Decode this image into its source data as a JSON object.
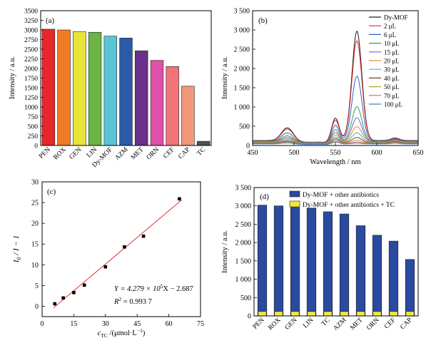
{
  "chart_data": [
    {
      "panel": "(a)",
      "type": "bar",
      "ylabel": "Intensity / a.u.",
      "ylim": [
        0,
        3500
      ],
      "yticks": [
        0,
        250,
        500,
        750,
        1000,
        1250,
        1500,
        1750,
        2000,
        2250,
        2500,
        2750,
        3000,
        3250,
        3500
      ],
      "categories": [
        "PEN",
        "ROX",
        "GEN",
        "LIN",
        "Dy-MOF",
        "AZM",
        "MET",
        "ORN",
        "CEF",
        "CAP",
        "TC"
      ],
      "values": [
        3020,
        3000,
        2960,
        2940,
        2840,
        2790,
        2460,
        2210,
        2050,
        1540,
        110
      ],
      "colors": [
        "#e8262b",
        "#f07b24",
        "#e8e43a",
        "#6ab344",
        "#58c4d6",
        "#2a5aa8",
        "#6a2f8a",
        "#e050a6",
        "#f07478",
        "#f0987a",
        "#505050"
      ]
    },
    {
      "panel": "(b)",
      "type": "line",
      "xlabel": "Wavelength / nm",
      "ylabel": "Intensity / a.u.",
      "xlim": [
        450,
        650
      ],
      "xticks": [
        450,
        500,
        550,
        600,
        650
      ],
      "ylim": [
        0,
        3500
      ],
      "yticks": [
        0,
        500,
        1000,
        1500,
        2000,
        2500,
        3000,
        3500
      ],
      "legend_position": "top-right",
      "series": [
        {
          "name": "Dy-MOF",
          "color": "#202020",
          "peak": 2970,
          "p492": 420,
          "p550": 660,
          "base": 130
        },
        {
          "name": "2 μL",
          "color": "#e03030",
          "peak": 2720,
          "p492": 390,
          "p550": 610,
          "base": 125
        },
        {
          "name": "6 μL",
          "color": "#3060c0",
          "peak": 1800,
          "p492": 290,
          "p550": 480,
          "base": 115
        },
        {
          "name": "10 μL",
          "color": "#30a050",
          "peak": 1010,
          "p492": 220,
          "p550": 370,
          "base": 105
        },
        {
          "name": "15 μL",
          "color": "#8060c0",
          "peak": 720,
          "p492": 180,
          "p550": 300,
          "base": 95
        },
        {
          "name": "20 μL",
          "color": "#e09030",
          "peak": 490,
          "p492": 150,
          "p550": 240,
          "base": 85
        },
        {
          "name": "30 μL",
          "color": "#40b0d0",
          "peak": 330,
          "p492": 120,
          "p550": 190,
          "base": 75
        },
        {
          "name": "40 μL",
          "color": "#804020",
          "peak": 210,
          "p492": 95,
          "p550": 150,
          "base": 65
        },
        {
          "name": "50 μL",
          "color": "#c0a020",
          "peak": 140,
          "p492": 80,
          "p550": 120,
          "base": 55
        },
        {
          "name": "70 μL",
          "color": "#d06080",
          "peak": 90,
          "p492": 65,
          "p550": 90,
          "base": 45
        },
        {
          "name": "100 μL",
          "color": "#4080d0",
          "peak": 60,
          "p492": 55,
          "p550": 70,
          "base": 40
        }
      ]
    },
    {
      "panel": "(c)",
      "type": "scatter",
      "xlabel_main": "c",
      "xlabel_sub": "TC",
      "xlabel_unit": " /(μmol·L",
      "xlabel_sup": "−1",
      "xlabel_end": ")",
      "ylabel_I": "I",
      "ylabel_sub": "0",
      "ylabel_rest": " / I − 1",
      "xlim": [
        0,
        75
      ],
      "xticks": [
        0,
        15,
        30,
        45,
        60,
        75
      ],
      "ylim": [
        -2.5,
        30
      ],
      "yticks": [
        0,
        5,
        10,
        15,
        20,
        25,
        30
      ],
      "x": [
        6,
        10,
        15,
        20,
        30,
        39,
        48,
        65
      ],
      "y": [
        0.6,
        2.0,
        3.3,
        5.1,
        9.5,
        14.3,
        16.9,
        25.9
      ],
      "fit_x": [
        5.5,
        66
      ],
      "fit_y": [
        -0.33,
        25.6
      ],
      "fit_color": "#e03030",
      "equation_line1": "Y = 4.279 × 10",
      "equation_sup": "5",
      "equation_line1_end": "X − 2.687",
      "equation_line2": "R",
      "equation_line2_sup": "2",
      "equation_line2_end": " = 0.993 7"
    },
    {
      "panel": "(d)",
      "type": "bar",
      "ylabel": "Intensity / a.u.",
      "ylim": [
        0,
        3500
      ],
      "yticks": [
        0,
        500,
        1000,
        1500,
        2000,
        2500,
        3000,
        3500
      ],
      "categories": [
        "PEN",
        "ROX",
        "GEN",
        "LIN",
        "TC",
        "AZM",
        "MET",
        "ORN",
        "CEF",
        "CAP"
      ],
      "legend_position": "top",
      "series": [
        {
          "name": "Dy-MOF + other antibiotics",
          "color": "#2a4aa0",
          "values": [
            3020,
            3000,
            2960,
            2940,
            2840,
            2780,
            2460,
            2200,
            2040,
            1540
          ]
        },
        {
          "name": "Dy-MOF + other antibiotics + TC",
          "color": "#f0e840",
          "values": [
            120,
            120,
            120,
            120,
            120,
            120,
            120,
            120,
            120,
            120
          ]
        }
      ]
    }
  ]
}
